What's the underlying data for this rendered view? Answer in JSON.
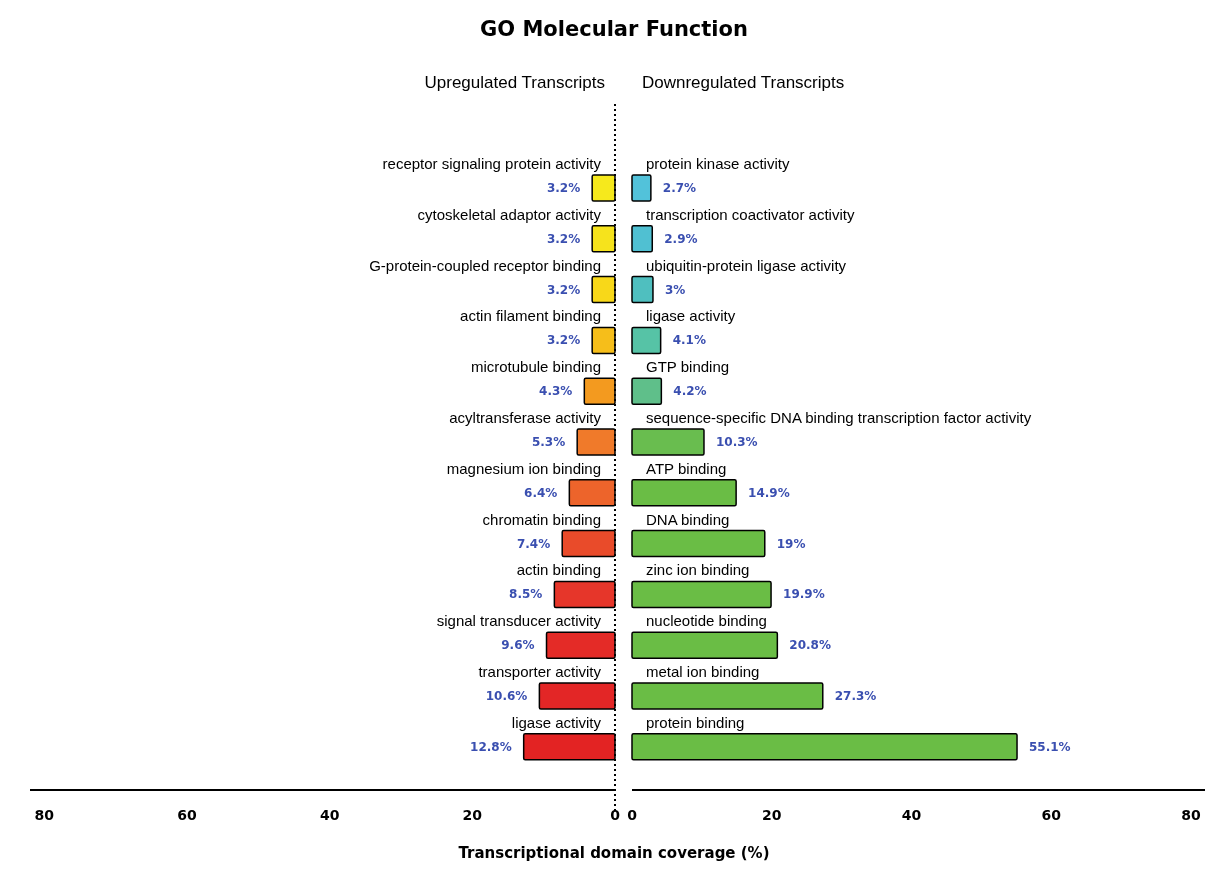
{
  "chart_data": [
    {
      "type": "bar",
      "orientation": "horizontal",
      "title": "GO Molecular Function",
      "subtitle": "Upregulated Transcripts",
      "xlabel": "Transcriptional domain coverage (%)",
      "categories": [
        "receptor signaling protein activity",
        "cytoskeletal adaptor activity",
        "G-protein-coupled receptor binding",
        "actin filament binding",
        "microtubule binding",
        "acyltransferase activity",
        "magnesium ion binding",
        "chromatin binding",
        "actin binding",
        "signal transducer activity",
        "transporter activity",
        "ligase activity"
      ],
      "values": [
        3.2,
        3.2,
        3.2,
        3.2,
        4.3,
        5.3,
        6.4,
        7.4,
        8.5,
        9.6,
        10.6,
        12.8
      ],
      "value_labels": [
        "3.2%",
        "3.2%",
        "3.2%",
        "3.2%",
        "4.3%",
        "5.3%",
        "6.4%",
        "7.4%",
        "8.5%",
        "9.6%",
        "10.6%",
        "12.8%"
      ],
      "colors": [
        "#f6e91c",
        "#f6e31c",
        "#f8d819",
        "#f6be1a",
        "#f39a1f",
        "#f07a2a",
        "#ed642b",
        "#e94b2a",
        "#e6362a",
        "#e42b27",
        "#e32626",
        "#e32323"
      ],
      "xlim": [
        82,
        0
      ],
      "xticks": [
        80,
        60,
        40,
        20,
        0
      ],
      "grid": false,
      "ref_lines": [
        {
          "axis": "x",
          "value": 0,
          "line_style": "dotted"
        }
      ]
    },
    {
      "type": "bar",
      "orientation": "horizontal",
      "subtitle": "Downregulated Transcripts",
      "categories": [
        "protein kinase activity",
        "transcription coactivator activity",
        "ubiquitin-protein ligase activity",
        "ligase activity",
        "GTP binding",
        "sequence-specific DNA binding transcription factor activity",
        "ATP binding",
        "DNA binding",
        "zinc ion binding",
        "nucleotide binding",
        "metal ion binding",
        "protein binding"
      ],
      "values": [
        2.7,
        2.9,
        3,
        4.1,
        4.2,
        10.3,
        14.9,
        19,
        19.9,
        20.8,
        27.3,
        55.1
      ],
      "value_labels": [
        "2.7%",
        "2.9%",
        "3%",
        "4.1%",
        "4.2%",
        "10.3%",
        "14.9%",
        "19%",
        "19.9%",
        "20.8%",
        "27.3%",
        "55.1%"
      ],
      "colors": [
        "#52c2da",
        "#50c0d2",
        "#4fbfbf",
        "#56c3a6",
        "#5fbf8a",
        "#69bd4f",
        "#6abd45",
        "#6abd45",
        "#6abd45",
        "#6abd45",
        "#6abd45",
        "#6abd45"
      ],
      "xlim": [
        0,
        82
      ],
      "xticks": [
        0,
        20,
        40,
        60,
        80
      ],
      "grid": false
    }
  ]
}
